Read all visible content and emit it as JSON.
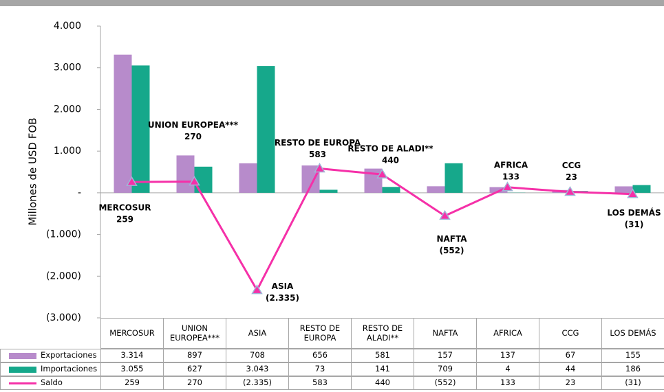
{
  "chart_data": {
    "type": "bar",
    "y_label": "Millones de USD FOB",
    "categories": [
      "MERCOSUR",
      "UNION EUROPEA***",
      "ASIA",
      "RESTO DE EUROPA",
      "RESTO DE ALADI**",
      "NAFTA",
      "AFRICA",
      "CCG",
      "LOS DEMÁS"
    ],
    "series": [
      {
        "name": "Exportaciones",
        "color": "#b78bcb",
        "type": "bar",
        "values": [
          3314,
          897,
          708,
          656,
          581,
          157,
          137,
          67,
          155
        ],
        "value_labels": [
          "3.314",
          "897",
          "708",
          "656",
          "581",
          "157",
          "137",
          "67",
          "155"
        ]
      },
      {
        "name": "Importaciones",
        "color": "#16a88b",
        "type": "bar",
        "values": [
          3055,
          627,
          3043,
          73,
          141,
          709,
          4,
          44,
          186
        ],
        "value_labels": [
          "3.055",
          "627",
          "3.043",
          "73",
          "141",
          "709",
          "4",
          "44",
          "186"
        ]
      },
      {
        "name": "Saldo",
        "color": "#f530a8",
        "type": "line",
        "values": [
          259,
          270,
          -2335,
          583,
          440,
          -552,
          133,
          23,
          -31
        ],
        "value_labels": [
          "259",
          "270",
          "(2.335)",
          "583",
          "440",
          "(552)",
          "133",
          "23",
          "(31)"
        ]
      }
    ],
    "ylim": [
      -3000,
      4000
    ],
    "yticks": [
      {
        "value": -3000,
        "label": "(3.000)"
      },
      {
        "value": -2000,
        "label": "(2.000)"
      },
      {
        "value": -1000,
        "label": "(1.000)"
      },
      {
        "value": 0,
        "label": "-"
      },
      {
        "value": 1000,
        "label": "1.000"
      },
      {
        "value": 2000,
        "label": "2.000"
      },
      {
        "value": 3000,
        "label": "3.000"
      },
      {
        "value": 4000,
        "label": "4.000"
      }
    ]
  }
}
